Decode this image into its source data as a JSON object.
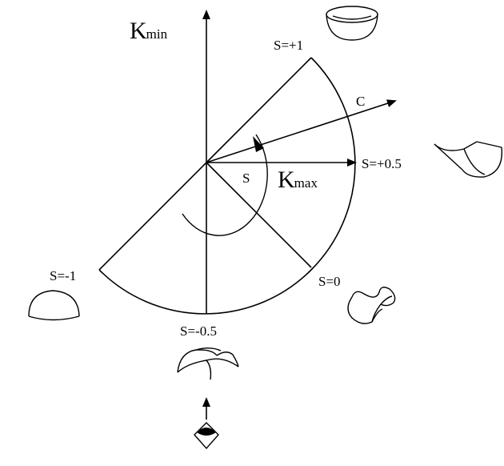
{
  "axes": {
    "kmin": {
      "symbol": "K",
      "sub": "min"
    },
    "kmax": {
      "symbol": "K",
      "sub": "max"
    }
  },
  "labels": {
    "c": "C",
    "s": "S",
    "s_plus_1": "S=+1",
    "s_plus_half": "S=+0.5",
    "s_zero": "S=0",
    "s_minus_half": "S=-0.5",
    "s_minus_1": "S=-1"
  },
  "shapes": {
    "s_plus_1": "cup-surface-icon",
    "s_plus_half": "rut-surface-icon",
    "s_zero": "saddle-surface-icon",
    "s_minus_half": "ridge-surface-icon",
    "s_minus_1": "cap-surface-icon",
    "bottom": "viewer-eye-icon"
  },
  "colors": {
    "ink": "#000000",
    "background": "#ffffff"
  }
}
